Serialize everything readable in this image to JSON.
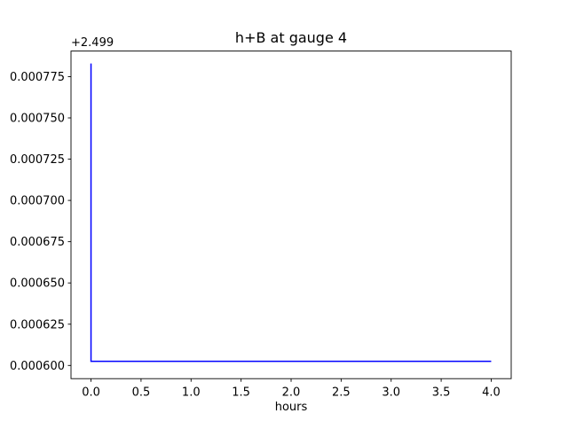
{
  "chart_data": {
    "type": "line",
    "title": "h+B at gauge 4",
    "xlabel": "hours",
    "ylabel": "",
    "y_offset_text": "+2.499",
    "grid": false,
    "legend": null,
    "xlim": [
      -0.2,
      4.2
    ],
    "ylim": [
      2.499592,
      2.4997905
    ],
    "x_ticks": [
      0.0,
      0.5,
      1.0,
      1.5,
      2.0,
      2.5,
      3.0,
      3.5,
      4.0
    ],
    "x_tick_labels": [
      "0.0",
      "0.5",
      "1.0",
      "1.5",
      "2.0",
      "2.5",
      "3.0",
      "3.5",
      "4.0"
    ],
    "y_ticks": [
      2.4996,
      2.499625,
      2.49965,
      2.499675,
      2.4997,
      2.499725,
      2.49975,
      2.499775
    ],
    "y_tick_labels": [
      "0.000600",
      "0.000625",
      "0.000650",
      "0.000675",
      "0.000700",
      "0.000725",
      "0.000750",
      "0.000775"
    ],
    "series": [
      {
        "name": "h+B",
        "color": "#0000ff",
        "line_width": 1.5,
        "x": [
          0.0,
          0.0,
          4.0
        ],
        "y": [
          2.499783,
          2.4996025,
          2.4996025
        ]
      }
    ],
    "axis_color": "#000000",
    "background_color": "#ffffff"
  }
}
